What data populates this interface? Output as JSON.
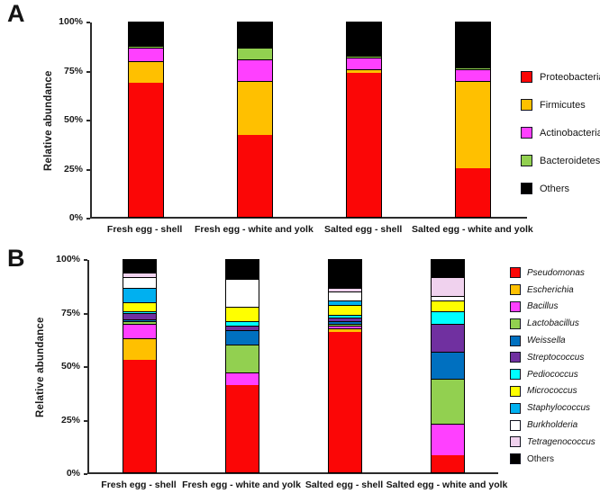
{
  "figure": {
    "background": "#ffffff"
  },
  "chart_data": [
    {
      "type": "bar",
      "stacked": true,
      "panel": "A",
      "ylabel": "Relative abundance",
      "ylim": [
        0,
        100
      ],
      "yticks": [
        "0%",
        "25%",
        "50%",
        "75%",
        "100%"
      ],
      "grid": false,
      "legend_position": "right",
      "categories": [
        "Fresh egg - shell",
        "Fresh egg - white and yolk",
        "Salted egg - shell",
        "Salted egg - white and yolk"
      ],
      "series": [
        {
          "name": "Proteobacteria",
          "color": "#FB0606",
          "italic": false,
          "values": [
            69,
            42,
            74,
            25
          ]
        },
        {
          "name": "Firmicutes",
          "color": "#FFC000",
          "italic": false,
          "values": [
            11,
            28,
            2,
            45
          ]
        },
        {
          "name": "Actinobacteria",
          "color": "#FF40FF",
          "italic": false,
          "values": [
            7,
            11,
            6,
            6
          ]
        },
        {
          "name": "Bacteroidetes",
          "color": "#92D050",
          "italic": false,
          "values": [
            1,
            6,
            1,
            1
          ]
        },
        {
          "name": "Others",
          "color": "#000000",
          "italic": false,
          "values": [
            12,
            13,
            17,
            23
          ]
        }
      ]
    },
    {
      "type": "bar",
      "stacked": true,
      "panel": "B",
      "ylabel": "Relative abundance",
      "ylim": [
        0,
        100
      ],
      "yticks": [
        "0%",
        "25%",
        "50%",
        "75%",
        "100%"
      ],
      "grid": false,
      "legend_position": "right",
      "categories": [
        "Fresh egg - shell",
        "Fresh egg - white and yolk",
        "Salted egg - shell",
        "Salted egg - white and yolk"
      ],
      "series": [
        {
          "name": "Pseudomonas",
          "color": "#FB0606",
          "italic": true,
          "values": [
            53,
            41,
            66,
            8
          ]
        },
        {
          "name": "Escherichia",
          "color": "#FFC000",
          "italic": true,
          "values": [
            10,
            0,
            2,
            0
          ]
        },
        {
          "name": "Bacillus",
          "color": "#FF40FF",
          "italic": true,
          "values": [
            7,
            6,
            1,
            15
          ]
        },
        {
          "name": "Lactobacillus",
          "color": "#92D050",
          "italic": true,
          "values": [
            1,
            13,
            1,
            21
          ]
        },
        {
          "name": "Weissella",
          "color": "#0070C0",
          "italic": true,
          "values": [
            1,
            7,
            1,
            13
          ]
        },
        {
          "name": "Streptococcus",
          "color": "#7030A0",
          "italic": true,
          "values": [
            3,
            2,
            2,
            13
          ]
        },
        {
          "name": "Pediococcus",
          "color": "#00FFFF",
          "italic": true,
          "values": [
            1,
            2,
            1,
            6
          ]
        },
        {
          "name": "Micrococcus",
          "color": "#FFFF00",
          "italic": true,
          "values": [
            4,
            7,
            5,
            5
          ]
        },
        {
          "name": "Staphylococcus",
          "color": "#00B0F0",
          "italic": true,
          "values": [
            7,
            0,
            2,
            0
          ]
        },
        {
          "name": "Burkholderia",
          "color": "#FFFFFF",
          "italic": true,
          "values": [
            5,
            13,
            4,
            2
          ]
        },
        {
          "name": "Tetragenococcus",
          "color": "#F0D2EE",
          "italic": true,
          "values": [
            2,
            0,
            2,
            9
          ]
        },
        {
          "name": "Others",
          "color": "#000000",
          "italic": false,
          "values": [
            6,
            9,
            13,
            8
          ]
        }
      ]
    }
  ]
}
